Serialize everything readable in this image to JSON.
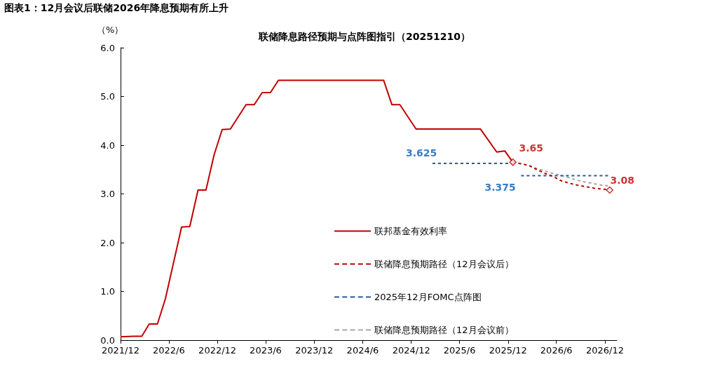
{
  "chart_data": {
    "type": "line",
    "title": "联储降息路径预期与点阵图指引（20251210）",
    "subtitle": "图表1：12月会议后联储2026年降息预期有所上升",
    "ylabel": "（%）",
    "xlim": [
      "2021-12-01",
      "2027-01-15"
    ],
    "xticks": [
      {
        "value": "2021-12",
        "label": "2021/12"
      },
      {
        "value": "2022-06",
        "label": "2022/6"
      },
      {
        "value": "2022-12",
        "label": "2022/12"
      },
      {
        "value": "2023-06",
        "label": "2023/6"
      },
      {
        "value": "2023-12",
        "label": "2023/12"
      },
      {
        "value": "2024-06",
        "label": "2024/6"
      },
      {
        "value": "2024-12",
        "label": "2024/12"
      },
      {
        "value": "2025-06",
        "label": "2025/6"
      },
      {
        "value": "2025-12",
        "label": "2025/12"
      },
      {
        "value": "2026-06",
        "label": "2026/6"
      },
      {
        "value": "2026-12",
        "label": "2026/12"
      }
    ],
    "ylim": [
      0,
      6
    ],
    "yticks": [
      {
        "value": 0,
        "label": "0.0"
      },
      {
        "value": 1,
        "label": "1.0"
      },
      {
        "value": 2,
        "label": "2.0"
      },
      {
        "value": 3,
        "label": "3.0"
      },
      {
        "value": 4,
        "label": "4.0"
      },
      {
        "value": 5,
        "label": "5.0"
      },
      {
        "value": 6,
        "label": "6.0"
      }
    ],
    "grid": false,
    "legend": "bottom right",
    "series": [
      {
        "name": "联邦基金有效利率",
        "color": "#c00000",
        "line_style": "solid",
        "marker": "none",
        "x": [
          "2021-12-01",
          "2022-01-19",
          "2022-02-19",
          "2022-03-19",
          "2022-04-19",
          "2022-05-19",
          "2022-07-19",
          "2022-08-19",
          "2022-09-19",
          "2022-10-19",
          "2022-11-19",
          "2022-12-19",
          "2023-01-19",
          "2023-03-19",
          "2023-04-19",
          "2023-05-19",
          "2023-06-19",
          "2023-07-19",
          "2024-08-19",
          "2024-09-19",
          "2024-10-19",
          "2024-12-19",
          "2025-08-19",
          "2025-10-19",
          "2025-11-19",
          "2025-12-19"
        ],
        "values": [
          0.07,
          0.08,
          0.08,
          0.33,
          0.33,
          0.85,
          2.32,
          2.33,
          3.08,
          3.08,
          3.81,
          4.32,
          4.33,
          4.83,
          4.83,
          5.08,
          5.08,
          5.33,
          5.33,
          4.83,
          4.83,
          4.33,
          4.33,
          3.86,
          3.88,
          3.65
        ]
      },
      {
        "name": "联储降息预期路径（12月会议后）",
        "color": "#c00000",
        "line_style": "dashed",
        "marker": "none",
        "x": [
          "2025-12-19",
          "2026-01-19",
          "2026-02-19",
          "2026-03-19",
          "2026-04-19",
          "2026-05-19",
          "2026-06-19",
          "2026-07-19",
          "2026-08-19",
          "2026-09-19",
          "2026-10-19",
          "2026-11-19",
          "2026-12-19"
        ],
        "values": [
          3.65,
          3.62,
          3.58,
          3.5,
          3.42,
          3.36,
          3.27,
          3.22,
          3.18,
          3.15,
          3.12,
          3.1,
          3.08
        ]
      },
      {
        "name": "2025年12月FOMC点阵图",
        "color": "#2f5597",
        "line_style": "dashed",
        "marker": "none",
        "x": [
          "2025-02-19",
          "2025-12-19",
          "2026-01-01",
          "2026-01-19",
          "2026-12-19"
        ],
        "values": [
          3.625,
          3.625,
          null,
          3.375,
          3.375
        ],
        "value_labels": [
          "3.625",
          null,
          null,
          "3.375",
          null
        ]
      },
      {
        "name": "联储降息预期路径（12月会议前）",
        "color": "#a6a6a6",
        "line_style": "dashed",
        "marker": "none",
        "x": [
          "2025-12-19",
          "2026-01-19",
          "2026-02-19",
          "2026-03-19",
          "2026-04-19",
          "2026-05-19",
          "2026-06-19",
          "2026-07-19",
          "2026-08-19",
          "2026-09-19",
          "2026-10-19",
          "2026-11-19",
          "2026-12-19"
        ],
        "values": [
          3.65,
          3.62,
          3.58,
          3.52,
          3.47,
          3.42,
          3.38,
          3.33,
          3.28,
          3.24,
          3.21,
          3.18,
          3.16
        ]
      },
      {
        "type": "scatter",
        "color": "#c00000",
        "marker": "diamond",
        "x": [
          "2025-12-19",
          "2026-12-19"
        ],
        "values": [
          3.65,
          3.08
        ],
        "value_labels": [
          "3.65",
          "3.08"
        ]
      }
    ]
  }
}
